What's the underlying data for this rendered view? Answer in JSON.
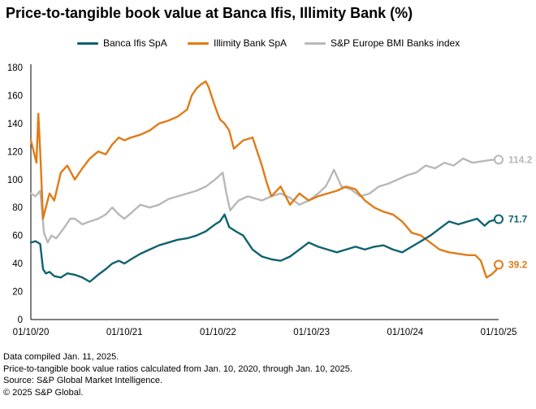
{
  "title": "Price-to-tangible book value at Banca Ifis, Illimity Bank (%)",
  "notes": [
    "Data compiled Jan. 11, 2025.",
    "Price-to-tangible book value ratios calculated from Jan. 10, 2020, through Jan. 10, 2025.",
    "Source: S&P Global Market Intelligence.",
    "© 2025 S&P Global."
  ],
  "chart_data": {
    "type": "line",
    "xlabel": "",
    "ylabel": "",
    "ylim": [
      0,
      180
    ],
    "yticks": [
      0,
      20,
      40,
      60,
      80,
      100,
      120,
      140,
      160,
      180
    ],
    "xticks": [
      "01/10/20",
      "01/10/21",
      "01/10/22",
      "01/10/23",
      "01/10/24",
      "01/10/25"
    ],
    "xlim": [
      2020.03,
      2025.03
    ],
    "grid": false,
    "legend_position": "top",
    "series": [
      {
        "name": "Banca Ifis SpA",
        "color": "#0f6270",
        "end_label": "71.7",
        "x": [
          2020.03,
          2020.08,
          2020.13,
          2020.16,
          2020.19,
          2020.23,
          2020.28,
          2020.35,
          2020.42,
          2020.5,
          2020.58,
          2020.66,
          2020.75,
          2020.83,
          2020.9,
          2020.97,
          2021.03,
          2021.1,
          2021.2,
          2021.3,
          2021.4,
          2021.5,
          2021.6,
          2021.7,
          2021.8,
          2021.9,
          2022.0,
          2022.05,
          2022.1,
          2022.15,
          2022.22,
          2022.3,
          2022.4,
          2022.5,
          2022.6,
          2022.7,
          2022.8,
          2022.9,
          2023.0,
          2023.1,
          2023.2,
          2023.3,
          2023.4,
          2023.5,
          2023.6,
          2023.7,
          2023.8,
          2023.9,
          2024.0,
          2024.1,
          2024.2,
          2024.3,
          2024.4,
          2024.5,
          2024.6,
          2024.7,
          2024.8,
          2024.88,
          2024.93,
          2024.98,
          2025.03
        ],
        "values": [
          55,
          56,
          54,
          36,
          33,
          34,
          31,
          30,
          33,
          32,
          30,
          27,
          32,
          36,
          40,
          42,
          40,
          43,
          47,
          50,
          53,
          55,
          57,
          58,
          60,
          63,
          68,
          70,
          75,
          66,
          63,
          60,
          50,
          45,
          43,
          42,
          45,
          50,
          55,
          52,
          50,
          48,
          50,
          52,
          50,
          52,
          53,
          50,
          48,
          52,
          56,
          60,
          65,
          70,
          68,
          70,
          72,
          67,
          70,
          71,
          71.7
        ]
      },
      {
        "name": "Illimity Bank SpA",
        "color": "#e07b16",
        "end_label": "39.2",
        "x": [
          2020.03,
          2020.06,
          2020.09,
          2020.11,
          2020.13,
          2020.16,
          2020.19,
          2020.23,
          2020.28,
          2020.35,
          2020.42,
          2020.5,
          2020.58,
          2020.66,
          2020.75,
          2020.83,
          2020.9,
          2020.97,
          2021.03,
          2021.1,
          2021.2,
          2021.3,
          2021.4,
          2021.5,
          2021.6,
          2021.7,
          2021.75,
          2021.8,
          2021.85,
          2021.9,
          2021.93,
          2021.96,
          2022.0,
          2022.05,
          2022.1,
          2022.15,
          2022.2,
          2022.3,
          2022.4,
          2022.5,
          2022.55,
          2022.6,
          2022.7,
          2022.8,
          2022.9,
          2023.0,
          2023.1,
          2023.2,
          2023.3,
          2023.4,
          2023.5,
          2023.6,
          2023.7,
          2023.8,
          2023.9,
          2024.0,
          2024.1,
          2024.2,
          2024.3,
          2024.4,
          2024.5,
          2024.6,
          2024.7,
          2024.78,
          2024.84,
          2024.9,
          2024.95,
          2025.0,
          2025.03
        ],
        "values": [
          128,
          120,
          112,
          147,
          120,
          72,
          80,
          90,
          85,
          105,
          110,
          100,
          108,
          115,
          120,
          118,
          125,
          130,
          128,
          130,
          132,
          135,
          140,
          142,
          145,
          150,
          160,
          165,
          168,
          170,
          166,
          160,
          152,
          143,
          140,
          135,
          122,
          128,
          130,
          110,
          98,
          88,
          95,
          82,
          90,
          85,
          88,
          90,
          92,
          95,
          93,
          85,
          80,
          77,
          75,
          70,
          62,
          60,
          55,
          50,
          48,
          47,
          46,
          46,
          42,
          30,
          32,
          35,
          39.2
        ]
      },
      {
        "name": "S&P Europe BMI Banks index",
        "color": "#b8b8b8",
        "end_label": "114.2",
        "x": [
          2020.03,
          2020.08,
          2020.13,
          2020.17,
          2020.21,
          2020.25,
          2020.3,
          2020.38,
          2020.45,
          2020.5,
          2020.58,
          2020.66,
          2020.75,
          2020.83,
          2020.9,
          2020.97,
          2021.03,
          2021.1,
          2021.2,
          2021.3,
          2021.4,
          2021.5,
          2021.6,
          2021.7,
          2021.8,
          2021.9,
          2022.0,
          2022.08,
          2022.12,
          2022.16,
          2022.25,
          2022.35,
          2022.5,
          2022.6,
          2022.7,
          2022.8,
          2022.9,
          2023.0,
          2023.1,
          2023.18,
          2023.22,
          2023.27,
          2023.35,
          2023.45,
          2023.55,
          2023.65,
          2023.75,
          2023.85,
          2023.95,
          2024.05,
          2024.15,
          2024.25,
          2024.35,
          2024.45,
          2024.55,
          2024.65,
          2024.75,
          2024.85,
          2024.95,
          2025.03
        ],
        "values": [
          90,
          88,
          92,
          62,
          55,
          60,
          58,
          65,
          72,
          72,
          68,
          70,
          72,
          75,
          80,
          75,
          72,
          76,
          82,
          80,
          82,
          86,
          88,
          90,
          92,
          95,
          100,
          105,
          90,
          78,
          85,
          88,
          85,
          88,
          90,
          87,
          82,
          85,
          90,
          95,
          100,
          107,
          95,
          93,
          88,
          90,
          95,
          97,
          100,
          103,
          105,
          110,
          108,
          112,
          110,
          115,
          112,
          113,
          114,
          114.2
        ]
      }
    ]
  }
}
